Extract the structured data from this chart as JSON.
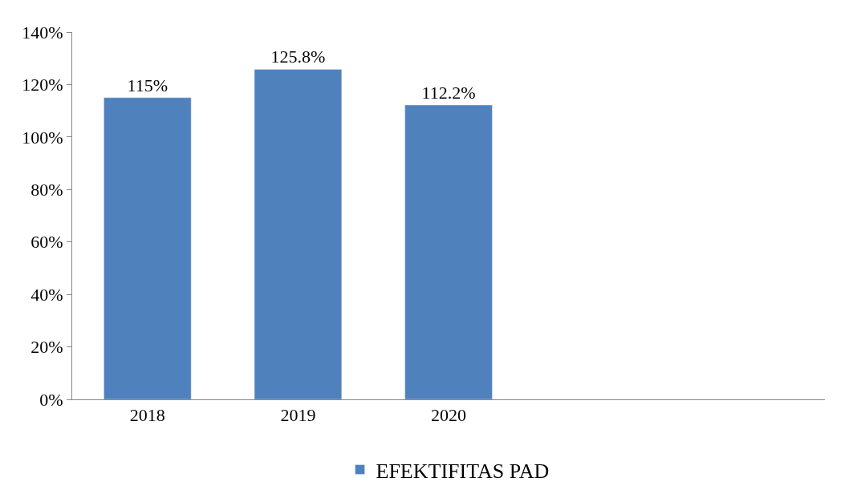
{
  "chart_data": {
    "type": "bar",
    "categories": [
      "2018",
      "2019",
      "2020",
      null,
      null
    ],
    "series": [
      {
        "name": "EFEKTIFITAS PAD",
        "color": "#4f81bd",
        "values": [
          115,
          125.8,
          112.2,
          null,
          null
        ],
        "value_labels": [
          "115%",
          "125.8%",
          "112.2%",
          null,
          null
        ]
      }
    ],
    "ylim": [
      0,
      140
    ],
    "yticks": [
      {
        "value": 0,
        "label": "0%"
      },
      {
        "value": 20,
        "label": "20%"
      },
      {
        "value": 40,
        "label": "40%"
      },
      {
        "value": 60,
        "label": "60%"
      },
      {
        "value": 80,
        "label": "80%"
      },
      {
        "value": 100,
        "label": "100%"
      },
      {
        "value": 120,
        "label": "120%"
      },
      {
        "value": 140,
        "label": "140%"
      }
    ],
    "legend": "bottom"
  }
}
